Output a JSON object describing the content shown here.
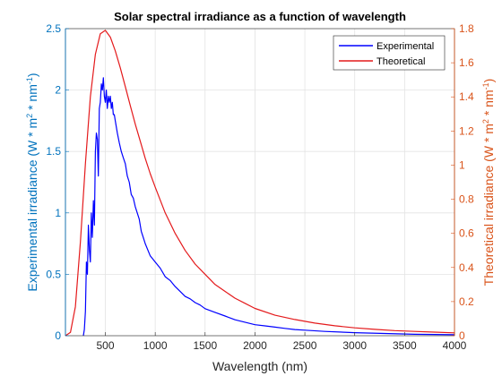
{
  "chart_data": {
    "type": "line",
    "title": "Solar spectral irradiance as a function of wavelength",
    "xlabel": "Wavelength (nm)",
    "ylabel_left": "Experimental irradiance (W * m^2 * nm^-1)",
    "ylabel_right": "Theoretical irradiance (W * m^2 * nm^-1)",
    "xlim": [
      100,
      4000
    ],
    "ylim_left": [
      0,
      2.5
    ],
    "ylim_right": [
      0,
      1.8
    ],
    "x_ticks": [
      500,
      1000,
      1500,
      2000,
      2500,
      3000,
      3500,
      4000
    ],
    "y_ticks_left": [
      0,
      0.5,
      1,
      1.5,
      2,
      2.5
    ],
    "y_ticks_right": [
      0,
      0.2,
      0.4,
      0.6,
      0.8,
      1,
      1.2,
      1.4,
      1.6,
      1.8
    ],
    "grid": true,
    "legend_position": "top-right",
    "colors": {
      "experimental": "#0000ff",
      "theoretical": "#e41a1c",
      "left_axis": "#0072bd",
      "right_axis": "#d95319",
      "grid": "#e3e3e3"
    },
    "series": [
      {
        "name": "Experimental",
        "axis": "left",
        "x": [
          280,
          290,
          300,
          310,
          320,
          330,
          340,
          350,
          360,
          370,
          380,
          390,
          400,
          410,
          420,
          430,
          440,
          450,
          460,
          470,
          480,
          490,
          500,
          510,
          520,
          530,
          540,
          550,
          560,
          570,
          580,
          590,
          600,
          620,
          640,
          660,
          680,
          700,
          720,
          740,
          760,
          780,
          800,
          820,
          840,
          860,
          880,
          900,
          950,
          1000,
          1050,
          1100,
          1150,
          1200,
          1250,
          1300,
          1350,
          1400,
          1450,
          1500,
          1600,
          1700,
          1800,
          1900,
          2000,
          2100,
          2200,
          2300,
          2400,
          2500,
          2700,
          3000,
          3300,
          3600,
          4000
        ],
        "y": [
          0.0,
          0.05,
          0.2,
          0.6,
          0.5,
          0.9,
          0.7,
          0.6,
          1.0,
          0.8,
          1.1,
          0.9,
          1.5,
          1.65,
          1.6,
          1.3,
          1.85,
          1.9,
          2.05,
          2.0,
          2.1,
          1.95,
          1.9,
          2.0,
          1.85,
          1.95,
          1.9,
          1.95,
          1.85,
          1.9,
          1.8,
          1.8,
          1.75,
          1.65,
          1.57,
          1.5,
          1.45,
          1.4,
          1.3,
          1.25,
          1.15,
          1.12,
          1.05,
          1.0,
          0.95,
          0.85,
          0.8,
          0.75,
          0.65,
          0.6,
          0.55,
          0.48,
          0.45,
          0.4,
          0.36,
          0.32,
          0.3,
          0.27,
          0.25,
          0.22,
          0.19,
          0.16,
          0.13,
          0.11,
          0.09,
          0.08,
          0.07,
          0.06,
          0.05,
          0.045,
          0.035,
          0.025,
          0.018,
          0.012,
          0.008
        ]
      },
      {
        "name": "Theoretical",
        "axis": "right",
        "x": [
          100,
          150,
          200,
          250,
          300,
          350,
          400,
          450,
          500,
          550,
          600,
          650,
          700,
          750,
          800,
          850,
          900,
          950,
          1000,
          1100,
          1200,
          1300,
          1400,
          1500,
          1600,
          1700,
          1800,
          1900,
          2000,
          2200,
          2400,
          2600,
          2800,
          3000,
          3200,
          3400,
          3600,
          3800,
          4000
        ],
        "y": [
          0.0,
          0.02,
          0.17,
          0.55,
          1.01,
          1.4,
          1.65,
          1.77,
          1.79,
          1.75,
          1.67,
          1.57,
          1.46,
          1.35,
          1.24,
          1.14,
          1.04,
          0.95,
          0.87,
          0.72,
          0.6,
          0.5,
          0.42,
          0.36,
          0.3,
          0.26,
          0.22,
          0.19,
          0.16,
          0.12,
          0.095,
          0.074,
          0.058,
          0.046,
          0.037,
          0.03,
          0.025,
          0.021,
          0.017
        ]
      }
    ]
  }
}
